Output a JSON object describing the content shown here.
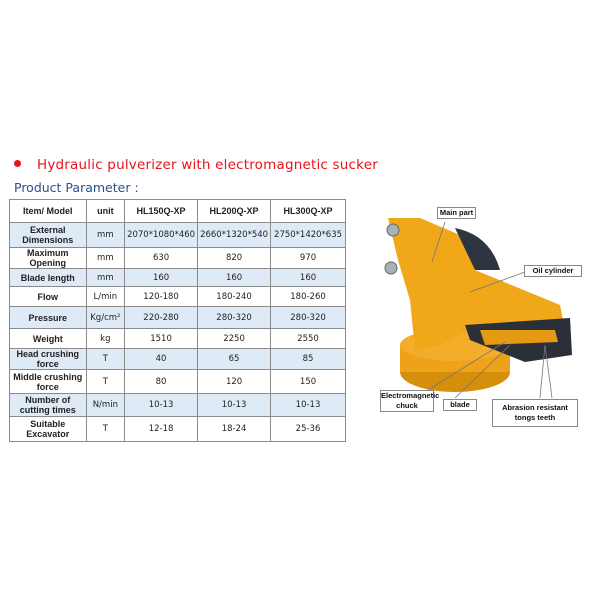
{
  "heading": "Hydraulic pulverizer with electromagnetic sucker",
  "subheading": "Product Parameter :",
  "table": {
    "headers": [
      "Item/ Model",
      "unit",
      "HL150Q-XP",
      "HL200Q-XP",
      "HL300Q-XP"
    ],
    "rows": [
      [
        "External Dimensions",
        "mm",
        "2070*1080*460",
        "2660*1320*540",
        "2750*1420*635"
      ],
      [
        "Maximum Opening",
        "mm",
        "630",
        "820",
        "970"
      ],
      [
        "Blade length",
        "mm",
        "160",
        "160",
        "160"
      ],
      [
        "Flow",
        "L/min",
        "120-180",
        "180-240",
        "180-260"
      ],
      [
        "Pressure",
        "Kg/cm²",
        "220-280",
        "280-320",
        "280-320"
      ],
      [
        "Weight",
        "kg",
        "1510",
        "2250",
        "2550"
      ],
      [
        "Head crushing force",
        "T",
        "40",
        "65",
        "85"
      ],
      [
        "Middle crushing force",
        "T",
        "80",
        "120",
        "150"
      ],
      [
        "Number of cutting times",
        "N/min",
        "10-13",
        "10-13",
        "10-13"
      ],
      [
        "Suitable Excavator",
        "T",
        "12-18",
        "18-24",
        "25-36"
      ]
    ]
  },
  "diagram_labels": {
    "main_part": "Main part",
    "oil_cylinder": "Oil cylinder",
    "chuck": "Electromagnetic chuck",
    "blade": "blade",
    "teeth": "Abrasion resistant tongs teeth"
  },
  "colors": {
    "heading": "#e8141b",
    "subheading": "#2a4f8f",
    "row_alt": "#deeaf6",
    "machine": "#f0a818"
  }
}
